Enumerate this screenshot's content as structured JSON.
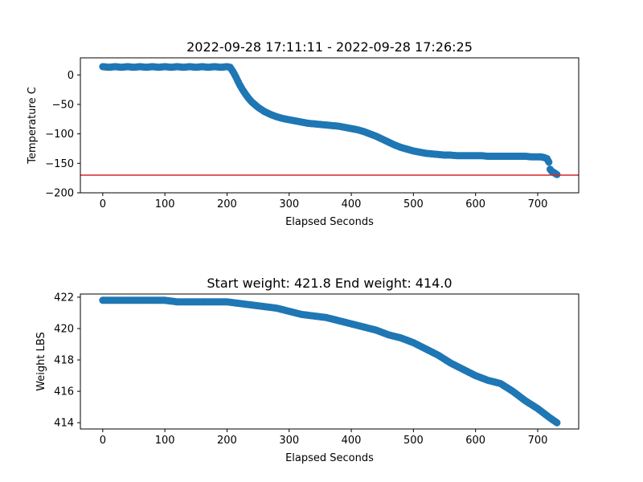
{
  "chart_data": [
    {
      "type": "scatter",
      "title": "2022-09-28 17:11:11 - 2022-09-28 17:26:25",
      "xlabel": "Elapsed Seconds",
      "ylabel": "Temperature C",
      "xlim": [
        -36,
        766
      ],
      "ylim": [
        -200,
        29
      ],
      "xticks": [
        0,
        100,
        200,
        300,
        400,
        500,
        600,
        700
      ],
      "yticks": [
        0,
        -50,
        -100,
        -150,
        -200
      ],
      "ytick_labels": [
        "0",
        "−50",
        "−100",
        "−150",
        "−200"
      ],
      "grid": false,
      "marker_color": "#1f77b4",
      "hline": {
        "y": -170,
        "color": "#d62728"
      },
      "series": [
        {
          "x": [
            0,
            10,
            20,
            30,
            40,
            50,
            60,
            70,
            80,
            90,
            100,
            110,
            120,
            130,
            140,
            150,
            160,
            170,
            180,
            190,
            200,
            205,
            210,
            215,
            220,
            225,
            230,
            235,
            240,
            250,
            260,
            270,
            280,
            290,
            300,
            310,
            320,
            330,
            340,
            350,
            360,
            370,
            380,
            390,
            400,
            410,
            420,
            430,
            440,
            450,
            460,
            470,
            480,
            490,
            500,
            510,
            520,
            530,
            540,
            550,
            560,
            570,
            580,
            590,
            600,
            610,
            620,
            630,
            640,
            650,
            660,
            670,
            680,
            690,
            700,
            705,
            710,
            715,
            718,
            720,
            722,
            725,
            728,
            731
          ],
          "y": [
            14,
            13,
            14,
            13,
            14,
            13,
            14,
            13,
            14,
            13,
            14,
            13,
            14,
            13,
            14,
            13,
            14,
            13,
            14,
            13,
            14,
            13,
            5,
            -5,
            -16,
            -25,
            -33,
            -40,
            -46,
            -55,
            -62,
            -67,
            -71,
            -74,
            -76,
            -78,
            -80,
            -82,
            -83,
            -84,
            -85,
            -86,
            -87,
            -89,
            -91,
            -93,
            -96,
            -100,
            -104,
            -109,
            -114,
            -119,
            -123,
            -126,
            -129,
            -131,
            -133,
            -134,
            -135,
            -136,
            -136,
            -137,
            -137,
            -137,
            -137,
            -137,
            -138,
            -138,
            -138,
            -138,
            -138,
            -138,
            -138,
            -139,
            -139,
            -139,
            -140,
            -142,
            -148,
            -160,
            -163,
            -165,
            -167,
            -169
          ]
        }
      ]
    },
    {
      "type": "scatter",
      "title": "Start weight: 421.8 End weight: 414.0",
      "xlabel": "Elapsed Seconds",
      "ylabel": "Weight LBS",
      "xlim": [
        -36,
        766
      ],
      "ylim": [
        413.6,
        422.2
      ],
      "xticks": [
        0,
        100,
        200,
        300,
        400,
        500,
        600,
        700
      ],
      "yticks": [
        414,
        416,
        418,
        420,
        422
      ],
      "grid": false,
      "marker_color": "#1f77b4",
      "series": [
        {
          "x": [
            0,
            20,
            40,
            60,
            80,
            100,
            120,
            140,
            160,
            180,
            200,
            220,
            240,
            260,
            280,
            300,
            320,
            340,
            360,
            380,
            400,
            420,
            440,
            460,
            480,
            500,
            520,
            540,
            560,
            580,
            600,
            620,
            640,
            660,
            680,
            700,
            720,
            731
          ],
          "y": [
            421.8,
            421.8,
            421.8,
            421.8,
            421.8,
            421.8,
            421.7,
            421.7,
            421.7,
            421.7,
            421.7,
            421.6,
            421.5,
            421.4,
            421.3,
            421.1,
            420.9,
            420.8,
            420.7,
            420.5,
            420.3,
            420.1,
            419.9,
            419.6,
            419.4,
            419.1,
            418.7,
            418.3,
            417.8,
            417.4,
            417.0,
            416.7,
            416.5,
            416.0,
            415.4,
            414.9,
            414.3,
            414.0
          ]
        }
      ]
    }
  ]
}
